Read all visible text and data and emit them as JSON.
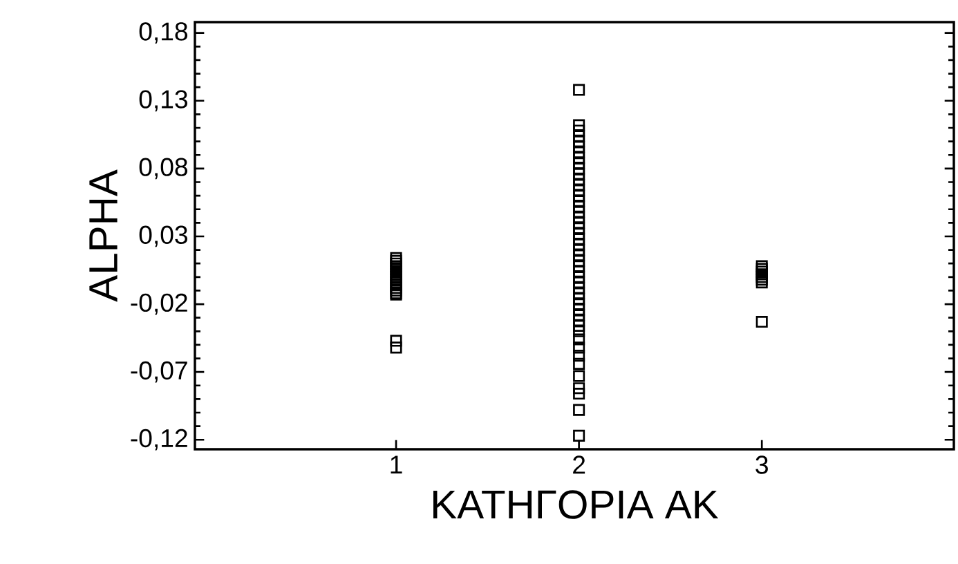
{
  "chart_data": {
    "type": "scatter",
    "xlabel": "ΚΑΤΗΓΟΡΙΑ ΑΚ",
    "ylabel": "ALPHA",
    "marker": "square",
    "xlim": [
      -0.1,
      4.05
    ],
    "xticks": [
      1,
      2,
      3
    ],
    "ylim": [
      -0.127,
      0.188
    ],
    "yticks": [
      {
        "value": 0.18,
        "label": "0,18"
      },
      {
        "value": 0.13,
        "label": "0,13"
      },
      {
        "value": 0.08,
        "label": "0,08"
      },
      {
        "value": 0.03,
        "label": "0,03"
      },
      {
        "value": -0.02,
        "label": "-0,02"
      },
      {
        "value": -0.07,
        "label": "-0,07"
      },
      {
        "value": -0.12,
        "label": "-0,12"
      }
    ],
    "series": [
      {
        "color": "#000000",
        "x": [
          1,
          1,
          1,
          1,
          1,
          1,
          1,
          1,
          1,
          1,
          1,
          1,
          1,
          1,
          1,
          1,
          1,
          2,
          2,
          2,
          2,
          2,
          2,
          2,
          2,
          2,
          2,
          2,
          2,
          2,
          2,
          2,
          2,
          2,
          2,
          2,
          2,
          2,
          2,
          2,
          2,
          2,
          2,
          2,
          2,
          2,
          2,
          2,
          2,
          2,
          2,
          2,
          2,
          2,
          2,
          2,
          2,
          2,
          2,
          2,
          2,
          2,
          2,
          2,
          2,
          2,
          3,
          3,
          3,
          3,
          3,
          3,
          3,
          3
        ],
        "values": [
          0.014,
          0.012,
          0.01,
          0.008,
          0.006,
          0.004,
          0.002,
          0.0,
          -0.002,
          -0.004,
          -0.006,
          -0.008,
          -0.01,
          -0.012,
          -0.013,
          -0.047,
          -0.052,
          0.138,
          0.112,
          0.108,
          0.104,
          0.1,
          0.096,
          0.092,
          0.088,
          0.084,
          0.08,
          0.076,
          0.072,
          0.068,
          0.064,
          0.06,
          0.056,
          0.052,
          0.048,
          0.044,
          0.04,
          0.036,
          0.032,
          0.028,
          0.024,
          0.02,
          0.016,
          0.012,
          0.008,
          0.004,
          0.0,
          -0.004,
          -0.008,
          -0.012,
          -0.016,
          -0.02,
          -0.024,
          -0.028,
          -0.032,
          -0.036,
          -0.04,
          -0.046,
          -0.052,
          -0.058,
          -0.064,
          -0.073,
          -0.082,
          -0.086,
          -0.098,
          -0.117,
          0.008,
          0.006,
          0.004,
          0.002,
          0.0,
          -0.002,
          -0.004,
          -0.033
        ]
      }
    ]
  }
}
